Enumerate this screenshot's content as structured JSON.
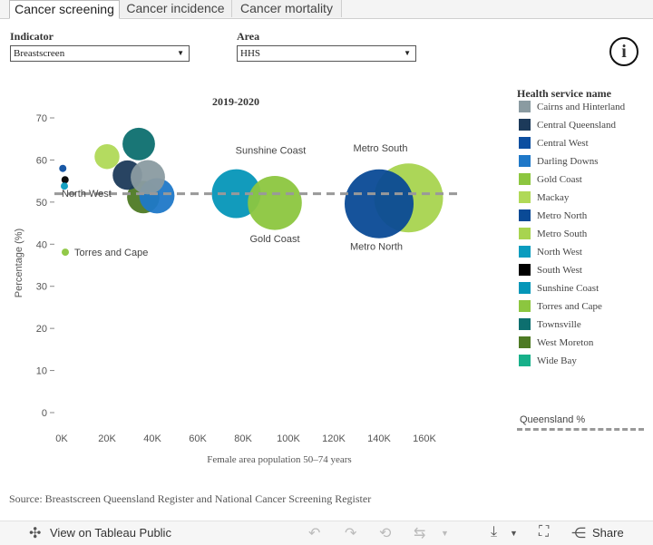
{
  "tabs": [
    "Cancer screening",
    "Cancer incidence",
    "Cancer mortality"
  ],
  "filters": {
    "indicator_label": "Indicator",
    "indicator_value": "Breastscreen",
    "area_label": "Area",
    "area_value": "HHS"
  },
  "legend": {
    "title": "Health service name",
    "items": [
      {
        "label": "Cairns and Hinterland",
        "color": "#8a9ba1"
      },
      {
        "label": "Central Queensland",
        "color": "#1c3a5a"
      },
      {
        "label": "Central West",
        "color": "#0d4fa0"
      },
      {
        "label": "Darling Downs",
        "color": "#1f78c8"
      },
      {
        "label": "Gold Coast",
        "color": "#8cc63f"
      },
      {
        "label": "Mackay",
        "color": "#b0d957"
      },
      {
        "label": "Metro North",
        "color": "#0a4a96"
      },
      {
        "label": "Metro South",
        "color": "#a8d44f"
      },
      {
        "label": "North West",
        "color": "#0a9cbf"
      },
      {
        "label": "South West",
        "color": "#000000"
      },
      {
        "label": "Sunshine Coast",
        "color": "#0596b8"
      },
      {
        "label": "Torres and Cape",
        "color": "#8cc63f"
      },
      {
        "label": "Townsville",
        "color": "#0d6f6f"
      },
      {
        "label": "West Moreton",
        "color": "#4e7a24"
      },
      {
        "label": "Wide Bay",
        "color": "#17b08a"
      }
    ],
    "reference_label": "Queensland %"
  },
  "chart_data": {
    "type": "scatter",
    "title": "2019-2020",
    "xlabel": "Female area population 50–74 years",
    "ylabel": "Percentage (%)",
    "xlim": [
      -4000,
      170000
    ],
    "ylim": [
      0,
      72
    ],
    "x_ticks": [
      "0K",
      "20K",
      "40K",
      "60K",
      "80K",
      "100K",
      "120K",
      "140K",
      "160K"
    ],
    "y_ticks": [
      0,
      10,
      20,
      30,
      40,
      50,
      60,
      70
    ],
    "reference_line": {
      "name": "Queensland %",
      "y": 52
    },
    "points": [
      {
        "name": "Central West",
        "x": 500,
        "y": 58,
        "size": 500,
        "color": "#0d4fa0",
        "label": ""
      },
      {
        "name": "South West",
        "x": 1500,
        "y": 55.3,
        "size": 1500,
        "color": "#000000",
        "label": ""
      },
      {
        "name": "North West",
        "x": 1200,
        "y": 53.8,
        "size": 1200,
        "color": "#0a9cbf",
        "label": "North West"
      },
      {
        "name": "Torres and Cape",
        "x": 1600,
        "y": 38.1,
        "size": 1600,
        "color": "#8cc63f",
        "label": "Torres and Cape"
      },
      {
        "name": "Mackay",
        "x": 20000,
        "y": 60.8,
        "size": 20000,
        "color": "#b0d957",
        "label": ""
      },
      {
        "name": "Townsville",
        "x": 34000,
        "y": 63.8,
        "size": 34000,
        "color": "#0d6f6f",
        "label": ""
      },
      {
        "name": "West Moreton",
        "x": 36000,
        "y": 51.2,
        "size": 34000,
        "color": "#4e7a24",
        "label": ""
      },
      {
        "name": "Darling Downs",
        "x": 42000,
        "y": 51.5,
        "size": 40000,
        "color": "#1f78c8",
        "label": ""
      },
      {
        "name": "Central Queensland",
        "x": 29000,
        "y": 56.4,
        "size": 28000,
        "color": "#1c3a5a",
        "label": ""
      },
      {
        "name": "Cairns and Hinterland",
        "x": 38000,
        "y": 55.9,
        "size": 38000,
        "color": "#8a9ba1",
        "label": ""
      },
      {
        "name": "Sunshine Coast",
        "x": 77000,
        "y": 52,
        "size": 77000,
        "color": "#0596b8",
        "label": "Sunshine Coast"
      },
      {
        "name": "Gold Coast",
        "x": 94000,
        "y": 49.8,
        "size": 94000,
        "color": "#8cc63f",
        "label": "Gold Coast"
      },
      {
        "name": "Metro South",
        "x": 153000,
        "y": 51,
        "size": 153000,
        "color": "#a8d44f",
        "label": "Metro South"
      },
      {
        "name": "Metro North",
        "x": 140000,
        "y": 49.6,
        "size": 153000,
        "color": "#0a4a96",
        "label": "Metro North"
      }
    ]
  },
  "source": "Source: Breastscreen Queensland Register and National Cancer Screening Register",
  "footer": {
    "view_label": "View on Tableau Public",
    "share_label": "Share"
  }
}
